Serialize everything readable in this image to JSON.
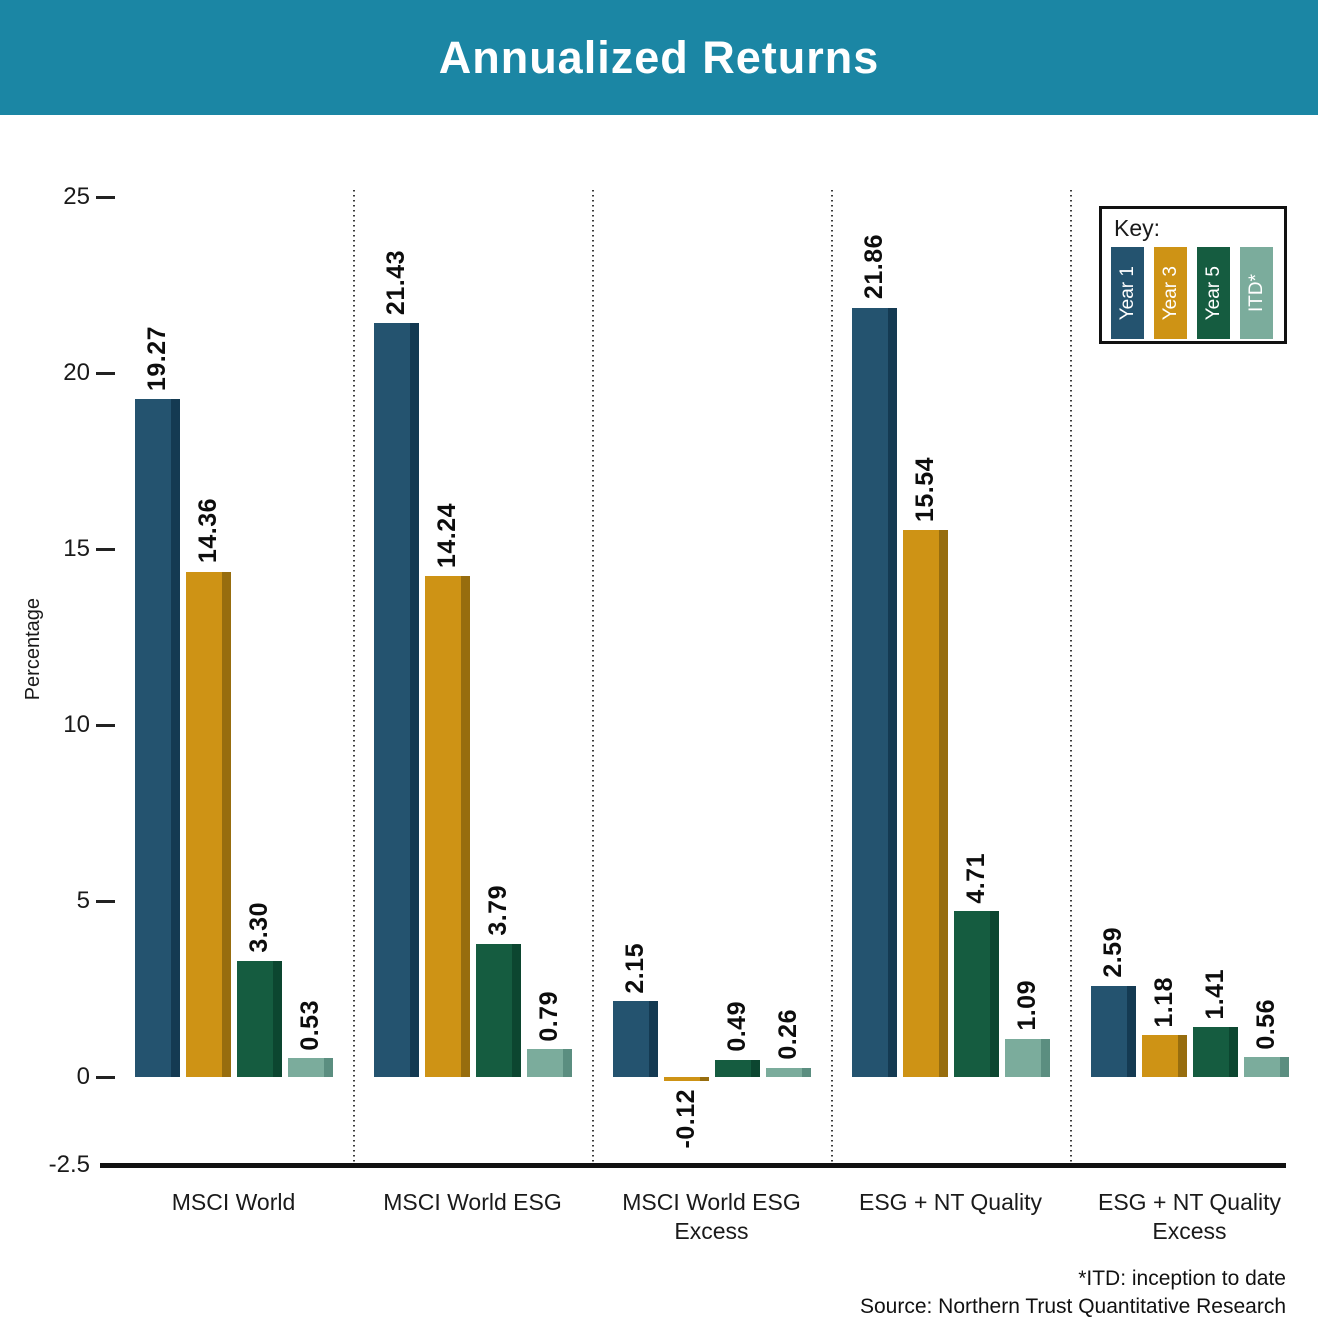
{
  "header": {
    "title": "Annualized Returns"
  },
  "legend": {
    "title": "Key:"
  },
  "footer": {
    "note": "*ITD: inception to date",
    "source": "Source: Northern Trust Quantitative Research"
  },
  "x_axis": {
    "labels": [
      "MSCI World",
      "MSCI World ESG",
      "MSCI World ESG\nExcess",
      "ESG + NT Quality",
      "ESG + NT Quality\nExcess"
    ]
  },
  "colors": {
    "header_background": "#1B86A4",
    "title_text": "#ffffff",
    "axis_text": "#1a1a1a",
    "baseline": "#111111"
  },
  "chart_data": {
    "type": "bar",
    "title": "Annualized Returns",
    "xlabel": "",
    "ylabel": "Percentage",
    "ylim": [
      -2.5,
      25
    ],
    "yticks": [
      "25",
      "20",
      "15",
      "10",
      "5",
      "0",
      "-2.5"
    ],
    "grid": "off",
    "legend_position": "top-right",
    "categories": [
      "MSCI World",
      "MSCI World ESG",
      "MSCI World ESG Excess",
      "ESG + NT Quality",
      "ESG + NT Quality Excess"
    ],
    "series": [
      {
        "name": "Year 1",
        "color": "#24536F",
        "edge_color": "#143A52",
        "values": [
          19.27,
          21.43,
          2.15,
          21.86,
          2.59
        ]
      },
      {
        "name": "Year 3",
        "color": "#CE9315",
        "edge_color": "#976D0E",
        "values": [
          14.36,
          14.24,
          -0.12,
          15.54,
          1.18
        ]
      },
      {
        "name": "Year 5",
        "color": "#155C40",
        "edge_color": "#0C4630",
        "values": [
          3.3,
          3.79,
          0.49,
          4.71,
          1.41
        ]
      },
      {
        "name": "ITD*",
        "color": "#7BAC9C",
        "edge_color": "#5B8E80",
        "values": [
          0.53,
          0.79,
          0.26,
          1.09,
          0.56
        ]
      }
    ]
  }
}
